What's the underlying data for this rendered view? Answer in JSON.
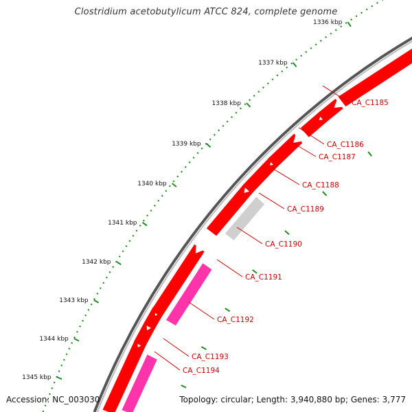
{
  "title": "Clostridium acetobutylicum ATCC 824, complete genome",
  "footer": {
    "accession": "Accession: NC_003030",
    "summary": "Topology: circular; Length: 3,940,880 bp; Genes: 3,777"
  },
  "colors": {
    "backbone": "#8a8a8a",
    "tick_dots": "#1f8a1f",
    "gene_red": "#ff0000",
    "gene_pink": "#ff33aa",
    "gene_grey": "#cfcfcf",
    "label": "#cc0000"
  },
  "scale": {
    "unit": "kbp",
    "ticks": [
      "1336 kbp",
      "1337 kbp",
      "1338 kbp",
      "1339 kbp",
      "1340 kbp",
      "1341 kbp",
      "1342 kbp",
      "1343 kbp",
      "1344 kbp",
      "1345 kbp"
    ]
  },
  "genes": [
    {
      "label": "CA_C1185"
    },
    {
      "label": "CA_C1186"
    },
    {
      "label": "CA_C1187"
    },
    {
      "label": "CA_C1188"
    },
    {
      "label": "CA_C1189"
    },
    {
      "label": "CA_C1190"
    },
    {
      "label": "CA_C1191"
    },
    {
      "label": "CA_C1192"
    },
    {
      "label": "CA_C1193"
    },
    {
      "label": "CA_C1194"
    }
  ]
}
